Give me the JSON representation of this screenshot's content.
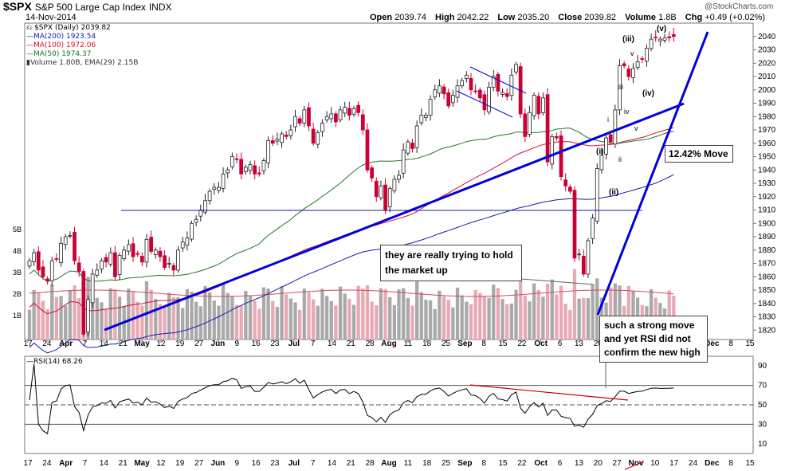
{
  "header": {
    "symbol": "$SPX",
    "name": "S&P 500 Large Cap Index",
    "exchange": "INDX",
    "date": "14-Nov-2014",
    "open_label": "Open",
    "open": "2039.74",
    "high_label": "High",
    "high": "2042.22",
    "low_label": "Low",
    "low": "2035.20",
    "close_label": "Close",
    "close": "2039.82",
    "volume_label": "Volume",
    "volume": "1.8B",
    "chg_label": "Chg",
    "chg": "+0.49 (+0.02%)",
    "brand": "@StockCharts.com"
  },
  "legend": {
    "main": "$SPX (Daily) 2039.82",
    "ma200": "MA(200) 1923.54",
    "ma100": "MA(100) 1972.06",
    "ma50": "MA(50) 1974.37",
    "volume": "Volume 1.80B, EMA(29) 2.15B",
    "rsi": "RSI(14) 68.26"
  },
  "colors": {
    "up": "#222222",
    "down": "#cc0033",
    "ma200": "#1a1aaa",
    "ma100": "#cc1133",
    "ma50": "#227722",
    "trend": "#0000dd",
    "vol_up": "#a9a9a9",
    "vol_down": "#e8a9b4",
    "ema_line": "#d94a5a",
    "rsi_line": "#000000",
    "rsi_div": "#cc0000"
  },
  "annotations": {
    "note_market": "they are really trying to hold the market up",
    "note_rsi": "such a strong move and yet RSI did not confirm the new high",
    "move_pct": "12.42% Move",
    "wave_i": "(i)",
    "wave_ii": "(ii)",
    "wave_iii": "(iii)",
    "wave_iv": "(iv)",
    "wave_v": "(v)",
    "sub_i": "i",
    "sub_ii": "ii",
    "sub_iii": "iii",
    "sub_iv": "iv",
    "sub_v": "v"
  },
  "chart_data": {
    "type": "candlestick",
    "title": "$SPX S&P 500 Large Cap Index (Daily)",
    "start_date": "2014-03-17",
    "end_date": "2014-11-14",
    "price_axis": {
      "min": 1810,
      "max": 2050,
      "ticks": [
        1820,
        1830,
        1840,
        1850,
        1860,
        1870,
        1880,
        1890,
        1900,
        1910,
        1920,
        1930,
        1940,
        1950,
        1960,
        1970,
        1980,
        1990,
        2000,
        2010,
        2020,
        2030,
        2040
      ]
    },
    "volume_axis": {
      "unit": "B",
      "ticks": [
        1,
        2,
        3,
        4,
        5
      ],
      "tick_labels": [
        "1B",
        "2B",
        "3B",
        "4B",
        "5B"
      ]
    },
    "x_tick_labels": [
      "17",
      "24",
      "Apr",
      "7",
      "14",
      "21",
      "May",
      "12",
      "19",
      "27",
      "Jun",
      "9",
      "16",
      "23",
      "Jul",
      "7",
      "14",
      "21",
      "28",
      "Aug",
      "11",
      "18",
      "25",
      "Sep",
      "8",
      "15",
      "22",
      "Oct",
      "6",
      "13",
      "20",
      "27",
      "Nov",
      "10",
      "17",
      "24",
      "Dec",
      "8",
      "15"
    ],
    "x_major_labels": [
      "Apr",
      "May",
      "Jun",
      "Jul",
      "Aug",
      "Sep",
      "Oct",
      "Nov",
      "Dec"
    ],
    "closes": [
      1872,
      1878,
      1865,
      1860,
      1857,
      1872,
      1873,
      1885,
      1890,
      1891,
      1872,
      1864,
      1817,
      1843,
      1862,
      1865,
      1872,
      1871,
      1878,
      1860,
      1876,
      1880,
      1884,
      1875,
      1877,
      1871,
      1888,
      1879,
      1880,
      1875,
      1867,
      1870,
      1865,
      1880,
      1886,
      1889,
      1900,
      1903,
      1910,
      1917,
      1924,
      1927,
      1927,
      1937,
      1940,
      1950,
      1948,
      1937,
      1942,
      1944,
      1937,
      1937,
      1947,
      1962,
      1960,
      1963,
      1967,
      1965,
      1970,
      1980,
      1975,
      1985,
      1973,
      1960,
      1968,
      1975,
      1980,
      1982,
      1976,
      1985,
      1987,
      1981,
      1986,
      1983,
      1970,
      1940,
      1934,
      1920,
      1928,
      1910,
      1926,
      1933,
      1936,
      1955,
      1961,
      1956,
      1973,
      1981,
      1981,
      1993,
      2000,
      2003,
      1997,
      1988,
      1996,
      2003,
      2007,
      2011,
      2000,
      1999,
      1994,
      1985,
      2002,
      2010,
      1999,
      1998,
      1995,
      2011,
      2019,
      1982,
      1965,
      1983,
      1996,
      1982,
      1994,
      1946,
      1965,
      1964,
      1935,
      1928,
      1924,
      1874,
      1877,
      1862,
      1887,
      1904,
      1941,
      1951,
      1964,
      1961,
      1985,
      2018,
      2018,
      2010,
      2016,
      2021,
      2023,
      2031,
      2038,
      2039,
      2038,
      2039,
      2039,
      2040
    ],
    "trend_ma": {
      "ma200": 1923.54,
      "ma100": 1972.06,
      "ma50": 1974.37
    },
    "volume_ema29": 2.15,
    "volume_last": 1.8,
    "horizontal_line": 1904,
    "rsi": {
      "period": 14,
      "value": 68.26,
      "ticks": [
        10,
        30,
        50,
        70,
        90
      ],
      "levels": [
        30,
        50,
        70
      ]
    },
    "annotations": [
      "they are really trying to hold the market up",
      "such a strong move and yet RSI did not confirm the new high",
      "12.42% Move"
    ]
  }
}
